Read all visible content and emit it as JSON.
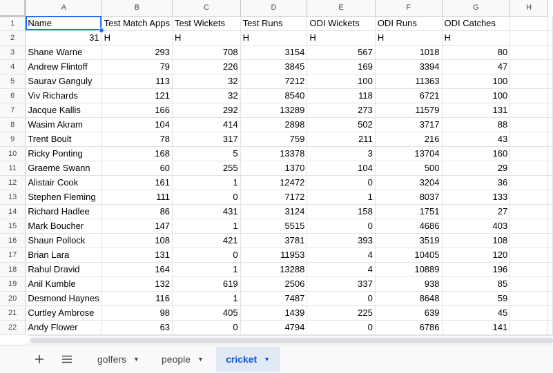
{
  "columns": [
    "A",
    "B",
    "C",
    "D",
    "E",
    "F",
    "G",
    "H"
  ],
  "row_numbers": [
    "1",
    "2",
    "3",
    "4",
    "5",
    "6",
    "7",
    "8",
    "9",
    "10",
    "11",
    "12",
    "13",
    "14",
    "15",
    "16",
    "17",
    "18",
    "19",
    "20",
    "21",
    "22"
  ],
  "header_row": [
    "Name",
    "Test Match Apps",
    "Test Wickets",
    "Test Runs",
    "ODI Wickets",
    "ODI Runs",
    "ODI Catches",
    ""
  ],
  "row2": [
    "31",
    "H",
    "H",
    "H",
    "H",
    "H",
    "H",
    ""
  ],
  "players": [
    [
      "Shane Warne",
      "293",
      "708",
      "3154",
      "567",
      "1018",
      "80"
    ],
    [
      "Andrew Flintoff",
      "79",
      "226",
      "3845",
      "169",
      "3394",
      "47"
    ],
    [
      "Saurav Ganguly",
      "113",
      "32",
      "7212",
      "100",
      "11363",
      "100"
    ],
    [
      "Viv Richards",
      "121",
      "32",
      "8540",
      "118",
      "6721",
      "100"
    ],
    [
      "Jacque Kallis",
      "166",
      "292",
      "13289",
      "273",
      "11579",
      "131"
    ],
    [
      "Wasim Akram",
      "104",
      "414",
      "2898",
      "502",
      "3717",
      "88"
    ],
    [
      "Trent Boult",
      "78",
      "317",
      "759",
      "211",
      "216",
      "43"
    ],
    [
      "Ricky Ponting",
      "168",
      "5",
      "13378",
      "3",
      "13704",
      "160"
    ],
    [
      "Graeme Swann",
      "60",
      "255",
      "1370",
      "104",
      "500",
      "29"
    ],
    [
      "Alistair Cook",
      "161",
      "1",
      "12472",
      "0",
      "3204",
      "36"
    ],
    [
      "Stephen Fleming",
      "111",
      "0",
      "7172",
      "1",
      "8037",
      "133"
    ],
    [
      "Richard Hadlee",
      "86",
      "431",
      "3124",
      "158",
      "1751",
      "27"
    ],
    [
      "Mark Boucher",
      "147",
      "1",
      "5515",
      "0",
      "4686",
      "403"
    ],
    [
      "Shaun Pollock",
      "108",
      "421",
      "3781",
      "393",
      "3519",
      "108"
    ],
    [
      "Brian Lara",
      "131",
      "0",
      "11953",
      "4",
      "10405",
      "120"
    ],
    [
      "Rahul Dravid",
      "164",
      "1",
      "13288",
      "4",
      "10889",
      "196"
    ],
    [
      "Anil Kumble",
      "132",
      "619",
      "2506",
      "337",
      "938",
      "85"
    ],
    [
      "Desmond Haynes",
      "116",
      "1",
      "7487",
      "0",
      "8648",
      "59"
    ],
    [
      "Curtley Ambrose",
      "98",
      "405",
      "1439",
      "225",
      "639",
      "45"
    ],
    [
      "Andy Flower",
      "63",
      "0",
      "4794",
      "0",
      "6786",
      "141"
    ]
  ],
  "tabs": {
    "add_icon": "plus-icon",
    "menu_icon": "hamburger-icon",
    "items": [
      {
        "label": "golfers",
        "active": false
      },
      {
        "label": "people",
        "active": false
      },
      {
        "label": "cricket",
        "active": true
      }
    ]
  },
  "colors": {
    "accent": "#1a73e8",
    "active_tab_bg": "#e1e9f7",
    "active_tab_text": "#0b57d0"
  }
}
